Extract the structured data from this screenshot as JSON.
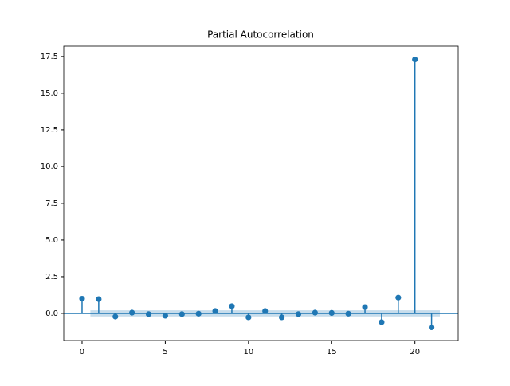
{
  "chart_data": {
    "type": "stem",
    "title": "Partial Autocorrelation",
    "color": "#1f77b4",
    "x": [
      0,
      1,
      2,
      3,
      4,
      5,
      6,
      7,
      8,
      9,
      10,
      11,
      12,
      13,
      14,
      15,
      16,
      17,
      18,
      19,
      20,
      21
    ],
    "values": [
      1.0,
      0.97,
      -0.22,
      0.05,
      -0.05,
      -0.16,
      -0.05,
      -0.02,
      0.16,
      0.49,
      -0.27,
      0.16,
      -0.27,
      -0.05,
      0.05,
      0.03,
      -0.02,
      0.43,
      -0.6,
      1.07,
      17.3,
      -0.95
    ],
    "confidence_band": {
      "x": [
        0.5,
        21.5
      ],
      "lower": -0.21,
      "upper": 0.21
    },
    "xlim": [
      -1.1,
      22.6
    ],
    "ylim": [
      -1.85,
      18.2
    ],
    "xticks": [
      0,
      5,
      10,
      15,
      20
    ],
    "yticks": [
      {
        "value": 0,
        "label": "0.0"
      },
      2.5,
      {
        "value": 5,
        "label": "5.0"
      },
      7.5,
      {
        "value": 10,
        "label": "10.0"
      },
      12.5,
      {
        "value": 15,
        "label": "15.0"
      },
      17.5
    ]
  }
}
